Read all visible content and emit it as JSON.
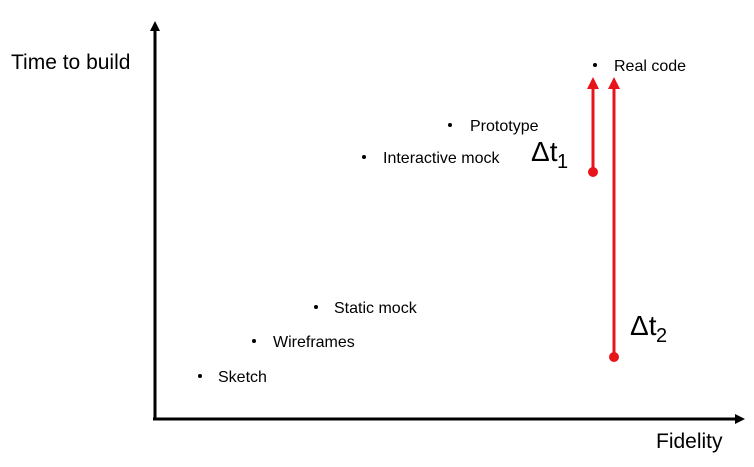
{
  "axes": {
    "y_label": "Time to build",
    "x_label": "Fidelity"
  },
  "points": [
    {
      "label": "Sketch"
    },
    {
      "label": "Wireframes"
    },
    {
      "label": "Static mock"
    },
    {
      "label": "Interactive mock"
    },
    {
      "label": "Prototype"
    },
    {
      "label": "Real code"
    }
  ],
  "deltas": [
    {
      "symbol": "Δt",
      "subscript": "1"
    },
    {
      "symbol": "Δt",
      "subscript": "2"
    }
  ],
  "colors": {
    "axis": "#000000",
    "arrow": "#e8141c"
  }
}
